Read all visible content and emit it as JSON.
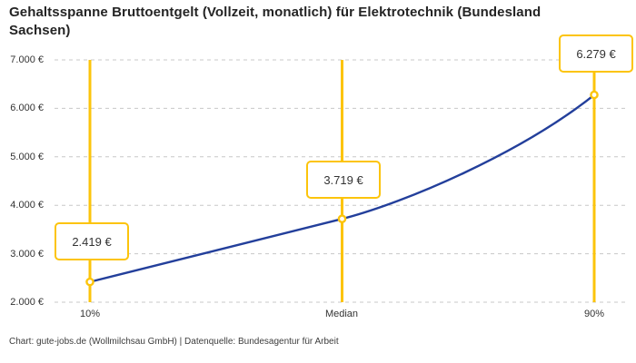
{
  "header": {
    "title": "Gehaltsspanne Bruttoentgelt (Vollzeit, monatlich) für Elektrotechnik (Bundesland Sachsen)"
  },
  "footer": {
    "attribution": "Chart: gute-jobs.de (Wollmilchsau GmbH) | Datenquelle: Bundesagentur für Arbeit"
  },
  "chart_data": {
    "type": "line",
    "title": "Gehaltsspanne Bruttoentgelt (Vollzeit, monatlich) für Elektrotechnik (Bundesland Sachsen)",
    "categories": [
      "10%",
      "Median",
      "90%"
    ],
    "values": [
      2419,
      3719,
      6279
    ],
    "value_labels": [
      "2.419 €",
      "3.719 €",
      "6.279 €"
    ],
    "y_tick_labels_top_to_bottom": [
      "7.000 €",
      "6.000 €",
      "5.000 €",
      "4.000 €",
      "3.000 €",
      "2.000 €"
    ],
    "ylim": [
      2000,
      7000
    ],
    "y_tick_step": 1000,
    "xlabel": "",
    "ylabel": "",
    "legend": "none",
    "grid": "horizontal-dashed",
    "colors": {
      "line": "#233f9b",
      "accent": "#fcc40b",
      "grid": "#c8c8c8",
      "text": "#333333",
      "title": "#242424"
    }
  }
}
